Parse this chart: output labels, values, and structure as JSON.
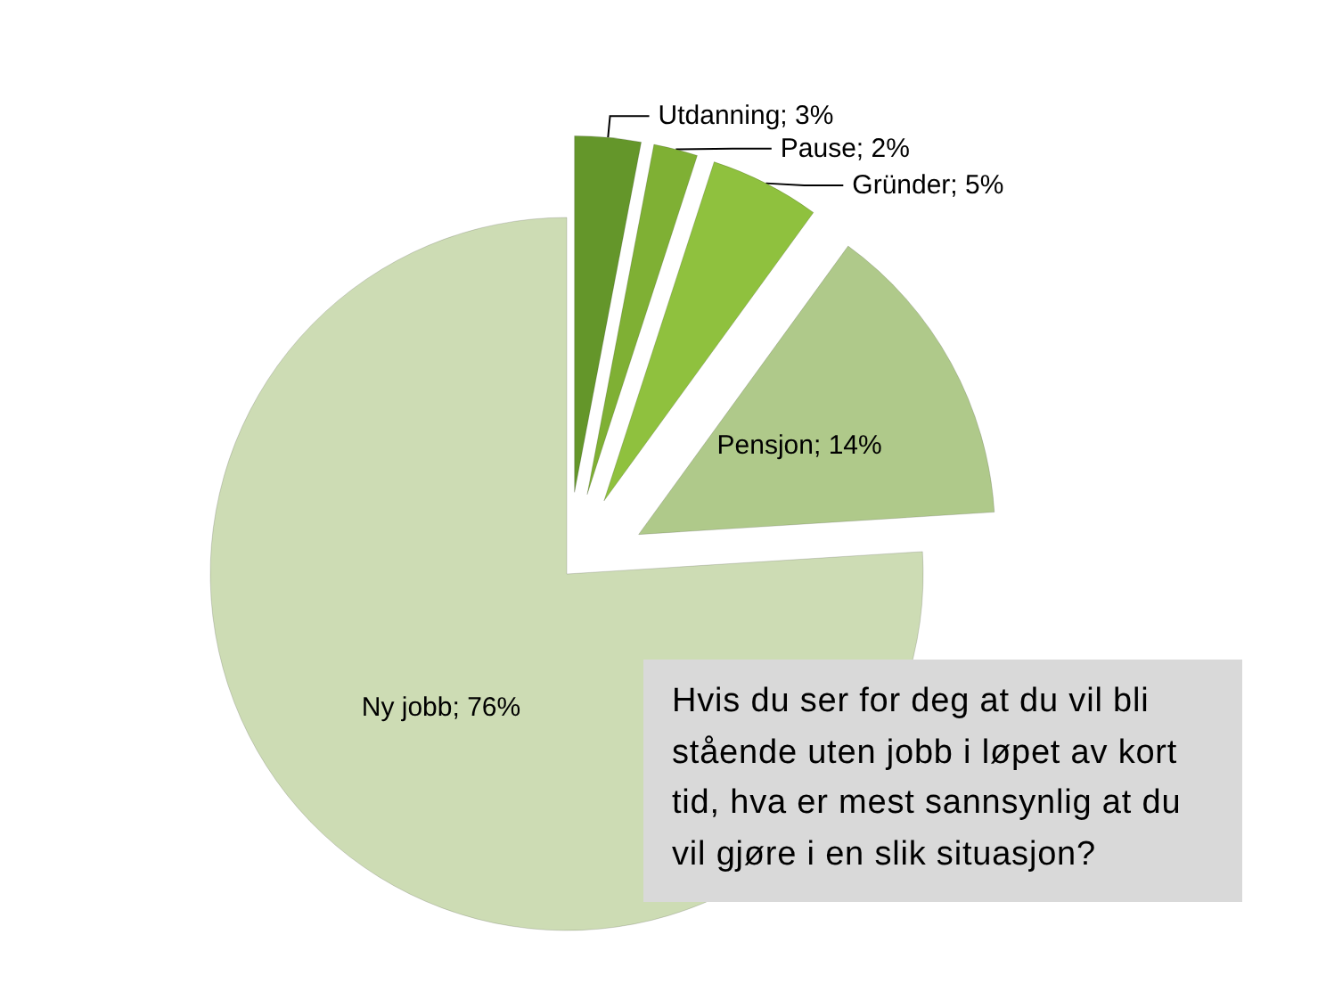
{
  "chart_data": {
    "type": "pie",
    "categories": [
      "Utdanning",
      "Pause",
      "Gründer",
      "Pensjon",
      "Ny jobb"
    ],
    "values": [
      3,
      2,
      5,
      14,
      76
    ],
    "value_labels": [
      "3%",
      "2%",
      "5%",
      "14%",
      "76%"
    ],
    "colors": [
      "#64962a",
      "#7fb034",
      "#8fc13e",
      "#afc98a",
      "#cddcb4"
    ],
    "annotations": [
      "Hvis du ser for deg at du vil bli stående uten jobb i løpet av kort tid, hva er mest sannsynlig at du vil gjøre i en slik situasjon?"
    ]
  }
}
